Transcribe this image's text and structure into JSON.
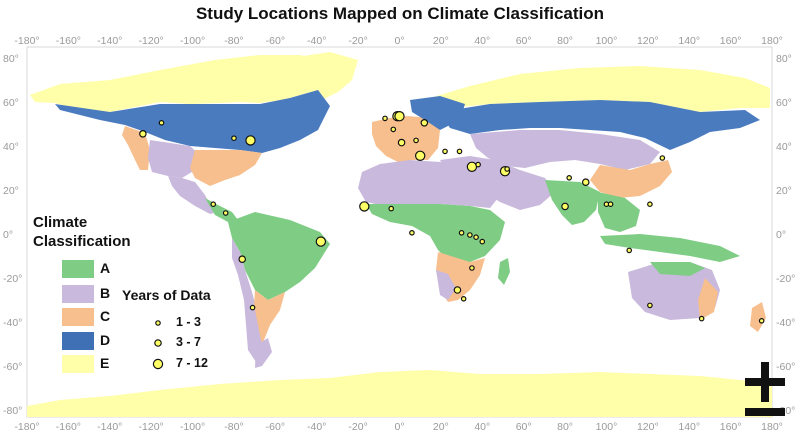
{
  "title": "Study Locations Mapped on Climate Classification",
  "axes": {
    "lon_ticks": [
      "-180°",
      "-160°",
      "-140°",
      "-120°",
      "-100°",
      "-80°",
      "-60°",
      "-40°",
      "-20°",
      "0°",
      "20°",
      "40°",
      "60°",
      "80°",
      "100°",
      "120°",
      "140°",
      "160°",
      "180°"
    ],
    "lat_ticks": [
      "80°",
      "60°",
      "40°",
      "20°",
      "0°",
      "-20°",
      "-40°",
      "-60°",
      "-80°"
    ]
  },
  "legend": {
    "title_line1": "Climate",
    "title_line2": "Classification",
    "classes": [
      {
        "label": "A",
        "color": "#7fcc85"
      },
      {
        "label": "B",
        "color": "#c9b9dc"
      },
      {
        "label": "C",
        "color": "#f7bf8e"
      },
      {
        "label": "D",
        "color": "#4a7bbf"
      },
      {
        "label": "E",
        "color": "#ffffaa"
      }
    ],
    "years_title": "Years of Data",
    "years": [
      {
        "label": "1 - 3",
        "size": "small"
      },
      {
        "label": "3 - 7",
        "size": "medium"
      },
      {
        "label": "7 - 12",
        "size": "large"
      }
    ]
  },
  "study_locations": [
    {
      "lon": -124,
      "lat": 46,
      "years": "3 - 7"
    },
    {
      "lon": -115,
      "lat": 51,
      "years": "1 - 3"
    },
    {
      "lon": -72,
      "lat": 43,
      "years": "7 - 12"
    },
    {
      "lon": -80,
      "lat": 44,
      "years": "1 - 3"
    },
    {
      "lon": -90,
      "lat": 14,
      "years": "1 - 3"
    },
    {
      "lon": -84,
      "lat": 10,
      "years": "1 - 3"
    },
    {
      "lon": -76,
      "lat": -11,
      "years": "3 - 7"
    },
    {
      "lon": -71,
      "lat": -33,
      "years": "1 - 3"
    },
    {
      "lon": -38,
      "lat": -3,
      "years": "7 - 12"
    },
    {
      "lon": -17,
      "lat": 13,
      "years": "7 - 12"
    },
    {
      "lon": -4,
      "lat": 12,
      "years": "1 - 3"
    },
    {
      "lon": -7,
      "lat": 53,
      "years": "1 - 3"
    },
    {
      "lon": -1,
      "lat": 54,
      "years": "7 - 12"
    },
    {
      "lon": 0,
      "lat": 54,
      "years": "7 - 12"
    },
    {
      "lon": -3,
      "lat": 48,
      "years": "1 - 3"
    },
    {
      "lon": 1,
      "lat": 42,
      "years": "3 - 7"
    },
    {
      "lon": 8,
      "lat": 43,
      "years": "1 - 3"
    },
    {
      "lon": 12,
      "lat": 51,
      "years": "3 - 7"
    },
    {
      "lon": 10,
      "lat": 36,
      "years": "7 - 12"
    },
    {
      "lon": 22,
      "lat": 38,
      "years": "1 - 3"
    },
    {
      "lon": 35,
      "lat": 31,
      "years": "7 - 12"
    },
    {
      "lon": 38,
      "lat": 32,
      "years": "1 - 3"
    },
    {
      "lon": 51,
      "lat": 29,
      "years": "7 - 12"
    },
    {
      "lon": 52,
      "lat": 30,
      "years": "1 - 3"
    },
    {
      "lon": 29,
      "lat": 38,
      "years": "1 - 3"
    },
    {
      "lon": 6,
      "lat": 1,
      "years": "1 - 3"
    },
    {
      "lon": 30,
      "lat": 1,
      "years": "1 - 3"
    },
    {
      "lon": 34,
      "lat": 0,
      "years": "1 - 3"
    },
    {
      "lon": 37,
      "lat": -1,
      "years": "1 - 3"
    },
    {
      "lon": 40,
      "lat": -3,
      "years": "1 - 3"
    },
    {
      "lon": 35,
      "lat": -15,
      "years": "1 - 3"
    },
    {
      "lon": 28,
      "lat": -25,
      "years": "3 - 7"
    },
    {
      "lon": 31,
      "lat": -29,
      "years": "1 - 3"
    },
    {
      "lon": 80,
      "lat": 13,
      "years": "3 - 7"
    },
    {
      "lon": 82,
      "lat": 26,
      "years": "1 - 3"
    },
    {
      "lon": 90,
      "lat": 24,
      "years": "3 - 7"
    },
    {
      "lon": 100,
      "lat": 14,
      "years": "1 - 3"
    },
    {
      "lon": 102,
      "lat": 14,
      "years": "1 - 3"
    },
    {
      "lon": 121,
      "lat": 14,
      "years": "1 - 3"
    },
    {
      "lon": 111,
      "lat": -7,
      "years": "1 - 3"
    },
    {
      "lon": 127,
      "lat": 35,
      "years": "1 - 3"
    },
    {
      "lon": 121,
      "lat": -32,
      "years": "1 - 3"
    },
    {
      "lon": 146,
      "lat": -38,
      "years": "1 - 3"
    },
    {
      "lon": 175,
      "lat": -39,
      "years": "1 - 3"
    }
  ],
  "zoom": {
    "plus_label": "+",
    "minus_label": "−"
  }
}
